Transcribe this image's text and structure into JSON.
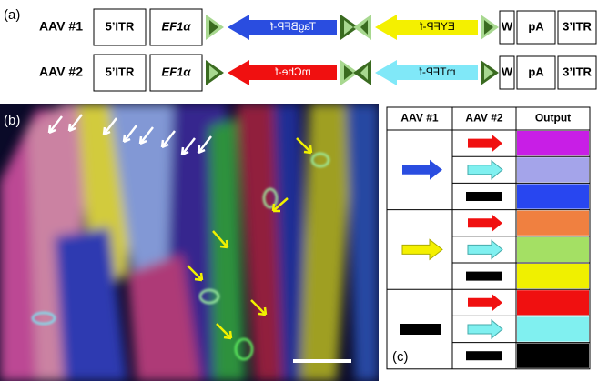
{
  "panel_a": {
    "label": "(a)",
    "constructs": [
      {
        "name": "AAV #1",
        "itr5": "5’ITR",
        "promoter": "EF1α",
        "gene1": "TagBFP-f",
        "gene2": "EYFP-f",
        "wpre": "W",
        "polya": "pA",
        "itr3": "3’ITR"
      },
      {
        "name": "AAV #2",
        "itr5": "5’ITR",
        "promoter": "EF1α",
        "gene1": "mChe-f",
        "gene2": "mTFP-f",
        "wpre": "W",
        "polya": "pA",
        "itr3": "3’ITR"
      }
    ]
  },
  "panel_b": {
    "label": "(b)"
  },
  "panel_c": {
    "label": "(c)",
    "header": [
      "AAV #1",
      "AAV #2",
      "Output"
    ]
  }
}
